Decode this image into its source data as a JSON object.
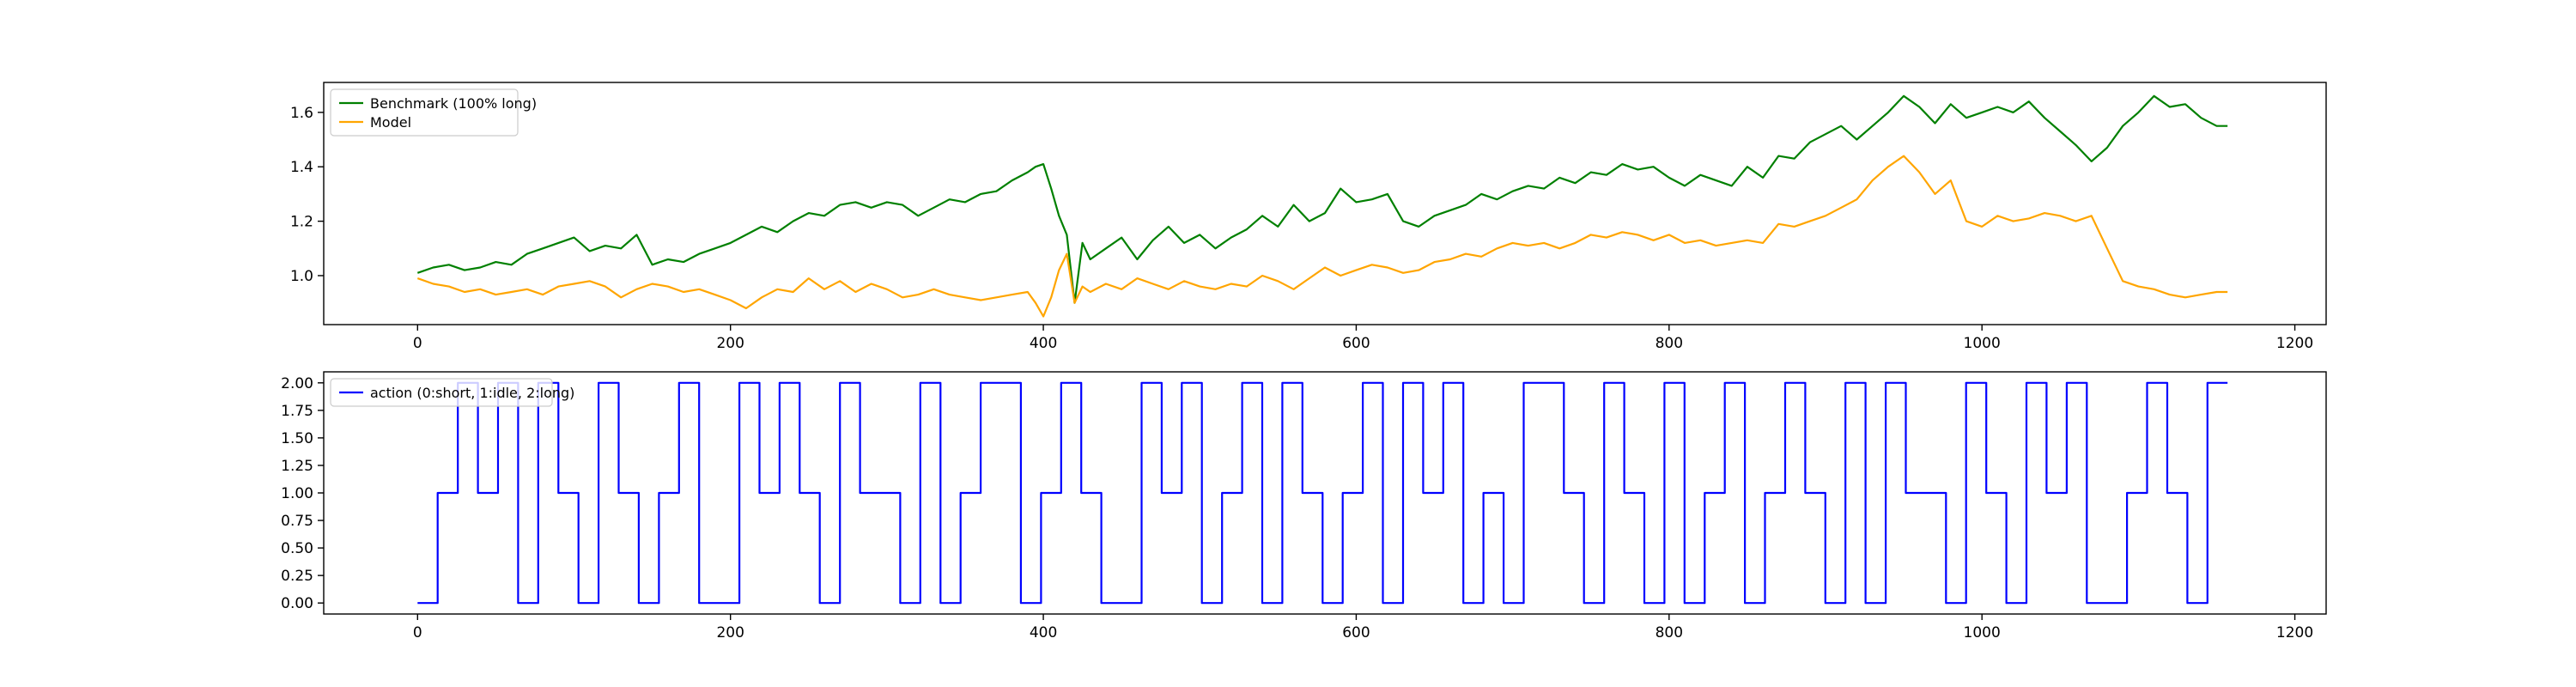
{
  "chart_data": [
    {
      "type": "line",
      "title": "",
      "xlabel": "",
      "ylabel": "",
      "xlim": [
        -60,
        1220
      ],
      "ylim": [
        0.82,
        1.71
      ],
      "x_ticks": [
        0,
        200,
        400,
        600,
        800,
        1000,
        1200
      ],
      "y_ticks": [
        1.0,
        1.2,
        1.4,
        1.6
      ],
      "x_tick_labels": [
        "0",
        "200",
        "400",
        "600",
        "800",
        "1000",
        "1200"
      ],
      "y_tick_labels": [
        "1.0",
        "1.2",
        "1.4",
        "1.6"
      ],
      "grid": false,
      "legend_position": "top-left",
      "series": [
        {
          "name": "Benchmark (100% long)",
          "color": "#008000",
          "x": [
            0,
            10,
            20,
            30,
            40,
            50,
            60,
            70,
            80,
            90,
            100,
            110,
            120,
            130,
            140,
            150,
            160,
            170,
            180,
            190,
            200,
            210,
            220,
            230,
            240,
            250,
            260,
            270,
            280,
            290,
            300,
            310,
            320,
            330,
            340,
            350,
            360,
            370,
            380,
            390,
            395,
            400,
            405,
            410,
            415,
            420,
            425,
            430,
            440,
            450,
            460,
            470,
            480,
            490,
            500,
            510,
            520,
            530,
            540,
            550,
            560,
            570,
            580,
            590,
            600,
            610,
            620,
            630,
            640,
            650,
            660,
            670,
            680,
            690,
            700,
            710,
            720,
            730,
            740,
            750,
            760,
            770,
            780,
            790,
            800,
            810,
            820,
            830,
            840,
            850,
            860,
            870,
            880,
            890,
            900,
            910,
            920,
            930,
            940,
            950,
            960,
            970,
            980,
            990,
            1000,
            1010,
            1020,
            1030,
            1040,
            1050,
            1060,
            1070,
            1080,
            1090,
            1100,
            1110,
            1120,
            1130,
            1140,
            1150,
            1157
          ],
          "values": [
            1.01,
            1.03,
            1.04,
            1.02,
            1.03,
            1.05,
            1.04,
            1.08,
            1.1,
            1.12,
            1.14,
            1.09,
            1.11,
            1.1,
            1.15,
            1.04,
            1.06,
            1.05,
            1.08,
            1.1,
            1.12,
            1.15,
            1.18,
            1.16,
            1.2,
            1.23,
            1.22,
            1.26,
            1.27,
            1.25,
            1.27,
            1.26,
            1.22,
            1.25,
            1.28,
            1.27,
            1.3,
            1.31,
            1.35,
            1.38,
            1.4,
            1.41,
            1.32,
            1.22,
            1.15,
            0.9,
            1.12,
            1.06,
            1.1,
            1.14,
            1.06,
            1.13,
            1.18,
            1.12,
            1.15,
            1.1,
            1.14,
            1.17,
            1.22,
            1.18,
            1.26,
            1.2,
            1.23,
            1.32,
            1.27,
            1.28,
            1.3,
            1.2,
            1.18,
            1.22,
            1.24,
            1.26,
            1.3,
            1.28,
            1.31,
            1.33,
            1.32,
            1.36,
            1.34,
            1.38,
            1.37,
            1.41,
            1.39,
            1.4,
            1.36,
            1.33,
            1.37,
            1.35,
            1.33,
            1.4,
            1.36,
            1.44,
            1.43,
            1.49,
            1.52,
            1.55,
            1.5,
            1.55,
            1.6,
            1.66,
            1.62,
            1.56,
            1.63,
            1.58,
            1.6,
            1.62,
            1.6,
            1.64,
            1.58,
            1.53,
            1.48,
            1.42,
            1.47,
            1.55,
            1.6,
            1.66,
            1.62,
            1.63,
            1.58,
            1.55,
            1.55
          ]
        },
        {
          "name": "Model",
          "color": "#FFA500",
          "x": [
            0,
            10,
            20,
            30,
            40,
            50,
            60,
            70,
            80,
            90,
            100,
            110,
            120,
            130,
            140,
            150,
            160,
            170,
            180,
            190,
            200,
            210,
            220,
            230,
            240,
            250,
            260,
            270,
            280,
            290,
            300,
            310,
            320,
            330,
            340,
            350,
            360,
            370,
            380,
            390,
            395,
            400,
            405,
            410,
            415,
            420,
            425,
            430,
            440,
            450,
            460,
            470,
            480,
            490,
            500,
            510,
            520,
            530,
            540,
            550,
            560,
            570,
            580,
            590,
            600,
            610,
            620,
            630,
            640,
            650,
            660,
            670,
            680,
            690,
            700,
            710,
            720,
            730,
            740,
            750,
            760,
            770,
            780,
            790,
            800,
            810,
            820,
            830,
            840,
            850,
            860,
            870,
            880,
            890,
            900,
            910,
            920,
            930,
            940,
            950,
            960,
            970,
            980,
            990,
            1000,
            1010,
            1020,
            1030,
            1040,
            1050,
            1060,
            1070,
            1080,
            1090,
            1100,
            1110,
            1120,
            1130,
            1140,
            1150,
            1157
          ],
          "values": [
            0.99,
            0.97,
            0.96,
            0.94,
            0.95,
            0.93,
            0.94,
            0.95,
            0.93,
            0.96,
            0.97,
            0.98,
            0.96,
            0.92,
            0.95,
            0.97,
            0.96,
            0.94,
            0.95,
            0.93,
            0.91,
            0.88,
            0.92,
            0.95,
            0.94,
            0.99,
            0.95,
            0.98,
            0.94,
            0.97,
            0.95,
            0.92,
            0.93,
            0.95,
            0.93,
            0.92,
            0.91,
            0.92,
            0.93,
            0.94,
            0.9,
            0.85,
            0.92,
            1.02,
            1.08,
            0.9,
            0.96,
            0.94,
            0.97,
            0.95,
            0.99,
            0.97,
            0.95,
            0.98,
            0.96,
            0.95,
            0.97,
            0.96,
            1.0,
            0.98,
            0.95,
            0.99,
            1.03,
            1.0,
            1.02,
            1.04,
            1.03,
            1.01,
            1.02,
            1.05,
            1.06,
            1.08,
            1.07,
            1.1,
            1.12,
            1.11,
            1.12,
            1.1,
            1.12,
            1.15,
            1.14,
            1.16,
            1.15,
            1.13,
            1.15,
            1.12,
            1.13,
            1.11,
            1.12,
            1.13,
            1.12,
            1.19,
            1.18,
            1.2,
            1.22,
            1.25,
            1.28,
            1.35,
            1.4,
            1.44,
            1.38,
            1.3,
            1.35,
            1.2,
            1.18,
            1.22,
            1.2,
            1.21,
            1.23,
            1.22,
            1.2,
            1.22,
            1.1,
            0.98,
            0.96,
            0.95,
            0.93,
            0.92,
            0.93,
            0.94,
            0.94
          ]
        }
      ]
    },
    {
      "type": "line",
      "title": "",
      "xlabel": "",
      "ylabel": "",
      "xlim": [
        -60,
        1220
      ],
      "ylim": [
        -0.1,
        2.1
      ],
      "x_ticks": [
        0,
        200,
        400,
        600,
        800,
        1000,
        1200
      ],
      "y_ticks": [
        0.0,
        0.25,
        0.5,
        0.75,
        1.0,
        1.25,
        1.5,
        1.75,
        2.0
      ],
      "x_tick_labels": [
        "0",
        "200",
        "400",
        "600",
        "800",
        "1000",
        "1200"
      ],
      "y_tick_labels": [
        "0.00",
        "0.25",
        "0.50",
        "0.75",
        "1.00",
        "1.25",
        "1.50",
        "1.75",
        "2.00"
      ],
      "grid": false,
      "legend_position": "top-left",
      "x_max": 1157,
      "series": [
        {
          "name": "action (0:short, 1:idle, 2:long)",
          "color": "#0000FF",
          "values": [
            0,
            1,
            2,
            1,
            2,
            0,
            2,
            1,
            0,
            2,
            1,
            0,
            1,
            2,
            0,
            0,
            2,
            1,
            2,
            1,
            0,
            2,
            1,
            1,
            0,
            2,
            0,
            1,
            2,
            2,
            0,
            1,
            2,
            1,
            0,
            0,
            2,
            1,
            2,
            0,
            1,
            2,
            0,
            2,
            1,
            0,
            1,
            2,
            0,
            2,
            1,
            2,
            0,
            1,
            0,
            2,
            2,
            1,
            0,
            2,
            1,
            0,
            2,
            0,
            1,
            2,
            0,
            1,
            2,
            1,
            0,
            2,
            0,
            2,
            1,
            1,
            0,
            2,
            1,
            0,
            2,
            1,
            2,
            0,
            0,
            1,
            2,
            1,
            0,
            2
          ]
        }
      ]
    }
  ]
}
